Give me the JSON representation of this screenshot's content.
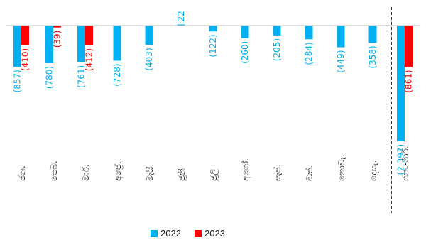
{
  "chart_data": {
    "type": "bar",
    "categories": [
      "ජන.",
      "පෙබ.",
      "මාර්.",
      "අප්‍රේ.",
      "මැයි",
      "ජූනි",
      "ජූලි",
      "අගෝ.",
      "සැප්.",
      "ඔක්.",
      "නොවැ.",
      "දෙසැ.",
      "ජන.-මාර්."
    ],
    "series": [
      {
        "name": "2022",
        "color": "#00B0F0",
        "values": [
          -857,
          -780,
          -761,
          -728,
          -403,
          22,
          -122,
          -260,
          -205,
          -284,
          -449,
          -358,
          -2397
        ],
        "labels": [
          "(857)",
          "(780)",
          "(761)",
          "(728)",
          "(403)",
          "22",
          "(122)",
          "(260)",
          "(205)",
          "(284)",
          "(449)",
          "(358)",
          "(2,397)"
        ]
      },
      {
        "name": "2023",
        "color": "#FF0000",
        "values": [
          -410,
          -39,
          -412,
          null,
          null,
          null,
          null,
          null,
          null,
          null,
          null,
          null,
          -861
        ],
        "labels": [
          "(410)",
          "(39)",
          "(412)",
          "",
          "",
          "",
          "",
          "",
          "",
          "",
          "",
          "",
          "(861)"
        ]
      }
    ],
    "ylim": [
      -2397,
      22
    ],
    "grid": false,
    "legend_position": "bottom",
    "separator_before_last": true,
    "title": "",
    "xlabel": "",
    "ylabel": ""
  }
}
